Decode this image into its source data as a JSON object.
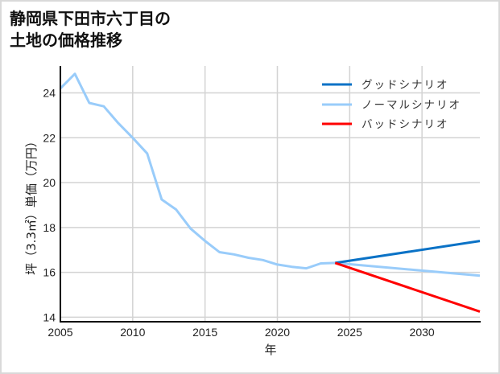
{
  "title": {
    "line1": "静岡県下田市六丁目の",
    "line2": "土地の価格推移"
  },
  "colors": {
    "good": "#0a72c6",
    "normal": "#99ccfa",
    "bad": "#ff0000",
    "grid": "#d3d3d3",
    "axis": "#000000",
    "frame": "#d9d9d9"
  },
  "chart_data": {
    "type": "line",
    "title": "静岡県下田市六丁目の土地の価格推移",
    "xlabel": "年",
    "ylabel": "坪（3.3㎡）単価（万円）",
    "xlim": [
      2005,
      2034
    ],
    "ylim": [
      13.8,
      25.2
    ],
    "x_ticks": [
      2005,
      2010,
      2015,
      2020,
      2025,
      2030
    ],
    "y_ticks": [
      14,
      16,
      18,
      20,
      22,
      24
    ],
    "grid": true,
    "legend_position": "upper right",
    "series": [
      {
        "name": "グッドシナリオ",
        "color": "#0a72c6",
        "x": [
          2024,
          2034
        ],
        "values": [
          16.42,
          17.4
        ]
      },
      {
        "name": "ノーマルシナリオ",
        "color": "#99ccfa",
        "x": [
          2005,
          2006,
          2007,
          2008,
          2009,
          2010,
          2011,
          2012,
          2013,
          2014,
          2015,
          2016,
          2017,
          2018,
          2019,
          2020,
          2021,
          2022,
          2023,
          2024,
          2034
        ],
        "values": [
          24.2,
          24.85,
          23.55,
          23.4,
          22.65,
          22.0,
          21.3,
          19.25,
          18.8,
          17.95,
          17.4,
          16.9,
          16.8,
          16.65,
          16.55,
          16.35,
          16.25,
          16.18,
          16.4,
          16.42,
          15.85
        ]
      },
      {
        "name": "バッドシナリオ",
        "color": "#ff0000",
        "x": [
          2024,
          2034
        ],
        "values": [
          16.42,
          14.25
        ]
      }
    ]
  }
}
